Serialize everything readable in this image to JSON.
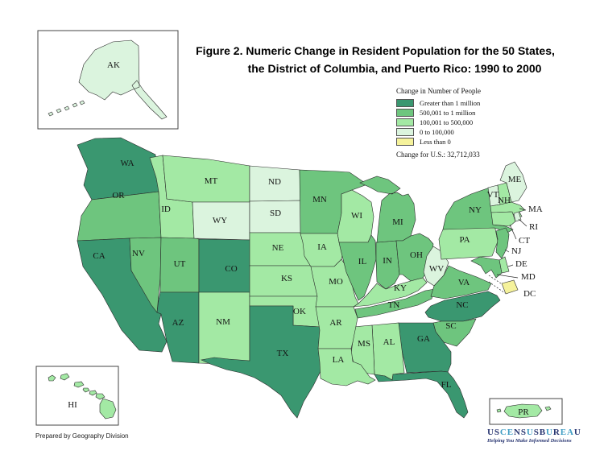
{
  "title": {
    "line1": "Figure 2.  Numeric Change in Resident Population for the 50 States,",
    "line2": "the District of Columbia, and Puerto Rico: 1990 to 2000"
  },
  "legend": {
    "title": "Change in Number of People",
    "items": [
      {
        "key": "c1",
        "label": "Greater than 1 million",
        "color": "#3a9770"
      },
      {
        "key": "c2",
        "label": "500,001 to 1 million",
        "color": "#6ec57e"
      },
      {
        "key": "c3",
        "label": "100,001 to 500,000",
        "color": "#a3e9a4"
      },
      {
        "key": "c4",
        "label": "0 to 100,000",
        "color": "#dbf4de"
      },
      {
        "key": "c5",
        "label": "Less than 0",
        "color": "#f5f29b"
      }
    ],
    "footnote": "Change for U.S.: 32,712,033"
  },
  "map": {
    "states": [
      {
        "code": "WA",
        "label": "WA",
        "category": "c1"
      },
      {
        "code": "OR",
        "label": "OR",
        "category": "c2"
      },
      {
        "code": "CA",
        "label": "CA",
        "category": "c1"
      },
      {
        "code": "ID",
        "label": "ID",
        "category": "c3"
      },
      {
        "code": "MT",
        "label": "MT",
        "category": "c3"
      },
      {
        "code": "WY",
        "label": "WY",
        "category": "c4"
      },
      {
        "code": "NV",
        "label": "NV",
        "category": "c2"
      },
      {
        "code": "UT",
        "label": "UT",
        "category": "c2"
      },
      {
        "code": "CO",
        "label": "CO",
        "category": "c1"
      },
      {
        "code": "AZ",
        "label": "AZ",
        "category": "c1"
      },
      {
        "code": "NM",
        "label": "NM",
        "category": "c3"
      },
      {
        "code": "ND",
        "label": "ND",
        "category": "c4"
      },
      {
        "code": "SD",
        "label": "SD",
        "category": "c4"
      },
      {
        "code": "NE",
        "label": "NE",
        "category": "c3"
      },
      {
        "code": "KS",
        "label": "KS",
        "category": "c3"
      },
      {
        "code": "OK",
        "label": "OK",
        "category": "c3"
      },
      {
        "code": "TX",
        "label": "TX",
        "category": "c1"
      },
      {
        "code": "MN",
        "label": "MN",
        "category": "c2"
      },
      {
        "code": "WI",
        "label": "WI",
        "category": "c3"
      },
      {
        "code": "IA",
        "label": "IA",
        "category": "c3"
      },
      {
        "code": "MO",
        "label": "MO",
        "category": "c3"
      },
      {
        "code": "IL",
        "label": "IL",
        "category": "c2"
      },
      {
        "code": "IN",
        "label": "IN",
        "category": "c2"
      },
      {
        "code": "MI",
        "label": "MI",
        "category": "c2"
      },
      {
        "code": "OH",
        "label": "OH",
        "category": "c2"
      },
      {
        "code": "KY",
        "label": "KY",
        "category": "c3"
      },
      {
        "code": "TN",
        "label": "TN",
        "category": "c2"
      },
      {
        "code": "WV",
        "label": "WV",
        "category": "c4"
      },
      {
        "code": "VA",
        "label": "VA",
        "category": "c2"
      },
      {
        "code": "NC",
        "label": "NC",
        "category": "c1"
      },
      {
        "code": "SC",
        "label": "SC",
        "category": "c2"
      },
      {
        "code": "GA",
        "label": "GA",
        "category": "c1"
      },
      {
        "code": "AL",
        "label": "AL",
        "category": "c3"
      },
      {
        "code": "MS",
        "label": "MS",
        "category": "c3"
      },
      {
        "code": "AR",
        "label": "AR",
        "category": "c3"
      },
      {
        "code": "LA",
        "label": "LA",
        "category": "c3"
      },
      {
        "code": "FL",
        "label": "FL",
        "category": "c1"
      },
      {
        "code": "PA",
        "label": "PA",
        "category": "c3"
      },
      {
        "code": "NY",
        "label": "NY",
        "category": "c2"
      },
      {
        "code": "VT",
        "label": "VT",
        "category": "c4"
      },
      {
        "code": "NH",
        "label": "NH",
        "category": "c3"
      },
      {
        "code": "ME",
        "label": "ME",
        "category": "c4"
      },
      {
        "code": "MA",
        "label": "MA",
        "category": "c3"
      },
      {
        "code": "RI",
        "label": "RI",
        "category": "c4"
      },
      {
        "code": "CT",
        "label": "CT",
        "category": "c3"
      },
      {
        "code": "NJ",
        "label": "NJ",
        "category": "c2"
      },
      {
        "code": "DE",
        "label": "DE",
        "category": "c3"
      },
      {
        "code": "MD",
        "label": "MD",
        "category": "c2"
      },
      {
        "code": "DC",
        "label": "DC",
        "category": "c5"
      },
      {
        "code": "AK",
        "label": "AK",
        "category": "c4"
      },
      {
        "code": "HI",
        "label": "HI",
        "category": "c3"
      },
      {
        "code": "PR",
        "label": "PR",
        "category": "c3"
      }
    ]
  },
  "footer": {
    "credit": "Prepared by Geography Division"
  },
  "logo": {
    "letters": [
      {
        "ch": "U",
        "tone": "navy"
      },
      {
        "ch": "S",
        "tone": "navy"
      },
      {
        "ch": "C",
        "tone": "teal"
      },
      {
        "ch": "E",
        "tone": "teal"
      },
      {
        "ch": "N",
        "tone": "navy"
      },
      {
        "ch": "S",
        "tone": "navy"
      },
      {
        "ch": "U",
        "tone": "teal"
      },
      {
        "ch": "S",
        "tone": "navy"
      },
      {
        "ch": "B",
        "tone": "navy"
      },
      {
        "ch": "U",
        "tone": "teal"
      },
      {
        "ch": "R",
        "tone": "navy"
      },
      {
        "ch": "E",
        "tone": "teal"
      },
      {
        "ch": "A",
        "tone": "teal"
      },
      {
        "ch": "U",
        "tone": "navy"
      }
    ],
    "tone_colors": {
      "teal": "#3f9dc4",
      "navy": "#283571"
    },
    "tagline": "Helping You Make Informed Decisions"
  }
}
